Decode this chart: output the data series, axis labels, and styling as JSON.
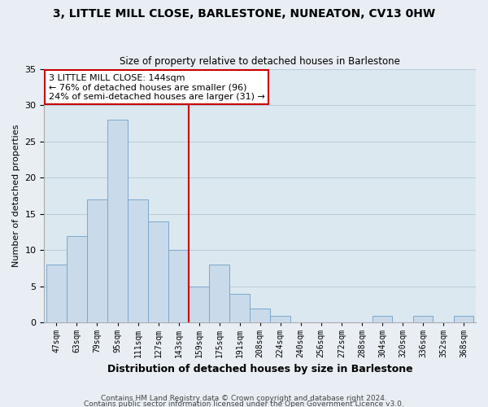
{
  "title": "3, LITTLE MILL CLOSE, BARLESTONE, NUNEATON, CV13 0HW",
  "subtitle": "Size of property relative to detached houses in Barlestone",
  "xlabel": "Distribution of detached houses by size in Barlestone",
  "ylabel": "Number of detached properties",
  "bin_labels": [
    "47sqm",
    "63sqm",
    "79sqm",
    "95sqm",
    "111sqm",
    "127sqm",
    "143sqm",
    "159sqm",
    "175sqm",
    "191sqm",
    "208sqm",
    "224sqm",
    "240sqm",
    "256sqm",
    "272sqm",
    "288sqm",
    "304sqm",
    "320sqm",
    "336sqm",
    "352sqm",
    "368sqm"
  ],
  "bar_heights": [
    8,
    12,
    17,
    28,
    17,
    14,
    10,
    5,
    8,
    4,
    2,
    1,
    0,
    0,
    0,
    0,
    1,
    0,
    1,
    0,
    1
  ],
  "bar_color": "#c9daea",
  "bar_edge_color": "#7aa8cc",
  "red_line_index": 6,
  "annotation_title": "3 LITTLE MILL CLOSE: 144sqm",
  "annotation_line1": "← 76% of detached houses are smaller (96)",
  "annotation_line2": "24% of semi-detached houses are larger (31) →",
  "annotation_box_color": "#ffffff",
  "annotation_box_edge": "#cc0000",
  "red_line_color": "#cc0000",
  "ylim": [
    0,
    35
  ],
  "yticks": [
    0,
    5,
    10,
    15,
    20,
    25,
    30,
    35
  ],
  "footer1": "Contains HM Land Registry data © Crown copyright and database right 2024.",
  "footer2": "Contains public sector information licensed under the Open Government Licence v3.0.",
  "bg_color": "#e8eef4",
  "plot_bg_color": "#dce8f0",
  "grid_color": "#b8ccd8"
}
